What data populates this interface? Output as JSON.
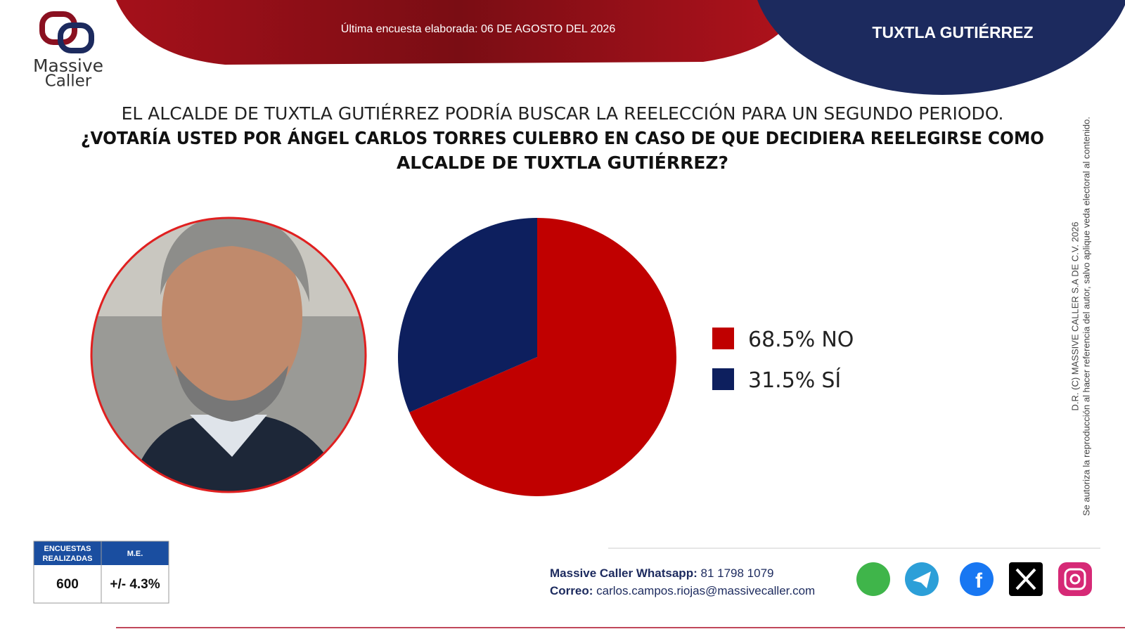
{
  "header": {
    "survey_date": "Última encuesta elaborada: 06 DE AGOSTO DEL 2026",
    "city": "TUXTLA GUTIÉRREZ",
    "logo_line1": "Massive",
    "logo_line2": "Caller"
  },
  "question": {
    "intro": "EL ALCALDE DE TUXTLA GUTIÉRREZ PODRÍA BUSCAR LA REELECCIÓN PARA UN SEGUNDO PERIODO.",
    "line1": "¿VOTARÍA USTED POR ÁNGEL CARLOS TORRES CULEBRO EN CASO DE QUE DECIDIERA REELEGIRSE COMO",
    "line2": "ALCALDE DE TUXTLA GUTIÉRREZ?"
  },
  "chart_data": {
    "type": "pie",
    "categories": [
      "NO",
      "SÍ"
    ],
    "values": [
      68.5,
      31.5
    ],
    "value_labels": [
      "68.5%",
      "31.5%"
    ],
    "colors": [
      "#c00000",
      "#0d1f5e"
    ]
  },
  "table": {
    "headers": [
      "ENCUESTAS REALIZADAS",
      "M.E."
    ],
    "rows": [
      [
        600,
        "+/- 4.3%"
      ]
    ]
  },
  "footer": {
    "whatsapp_label": "Massive Caller Whatsapp:",
    "whatsapp_number": "81 1798 1079",
    "email_label": "Correo:",
    "email": "carlos.campos.riojas@massivecaller.com"
  },
  "side_note": {
    "copyright": "D.R. (C) MASSIVE CALLER S.A DE C.V. 2026",
    "notice": "Se autoriza la reproducción al hacer referencia del autor, salvo aplique veda electoral al contenido."
  }
}
